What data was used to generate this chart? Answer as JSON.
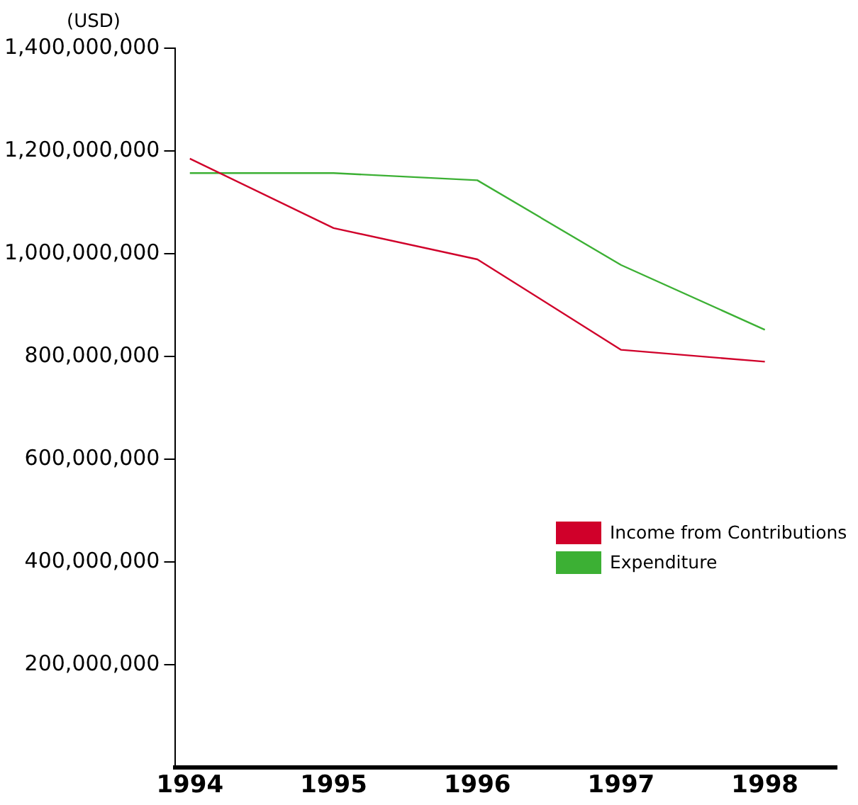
{
  "chart_data": {
    "type": "line",
    "ylabel": "(USD)",
    "x": [
      1994,
      1995,
      1996,
      1997,
      1998
    ],
    "xlim": [
      1993.9,
      1998.5
    ],
    "xticks": [
      1994,
      1995,
      1996,
      1997,
      1998
    ],
    "ylim": [
      0,
      1400000000
    ],
    "yticks": [
      {
        "value": 200000000,
        "label": "200,000,000"
      },
      {
        "value": 400000000,
        "label": "400,000,000"
      },
      {
        "value": 600000000,
        "label": "600,000,000"
      },
      {
        "value": 800000000,
        "label": "800,000,000"
      },
      {
        "value": 1000000000,
        "label": "1,000,000,000"
      },
      {
        "value": 1200000000,
        "label": "1,200,000,000"
      },
      {
        "value": 1400000000,
        "label": "1,400,000,000"
      }
    ],
    "series": [
      {
        "name": "Income from Contributions",
        "color": "#d0002a",
        "values": [
          1185000000,
          1050000000,
          989000000,
          813000000,
          790000000
        ]
      },
      {
        "name": "Expenditure",
        "color": "#3cb034",
        "values": [
          1157000000,
          1157000000,
          1143000000,
          978000000,
          852000000
        ]
      }
    ],
    "grid": false,
    "legend": "right",
    "marker": "none",
    "line_style": "solid"
  }
}
